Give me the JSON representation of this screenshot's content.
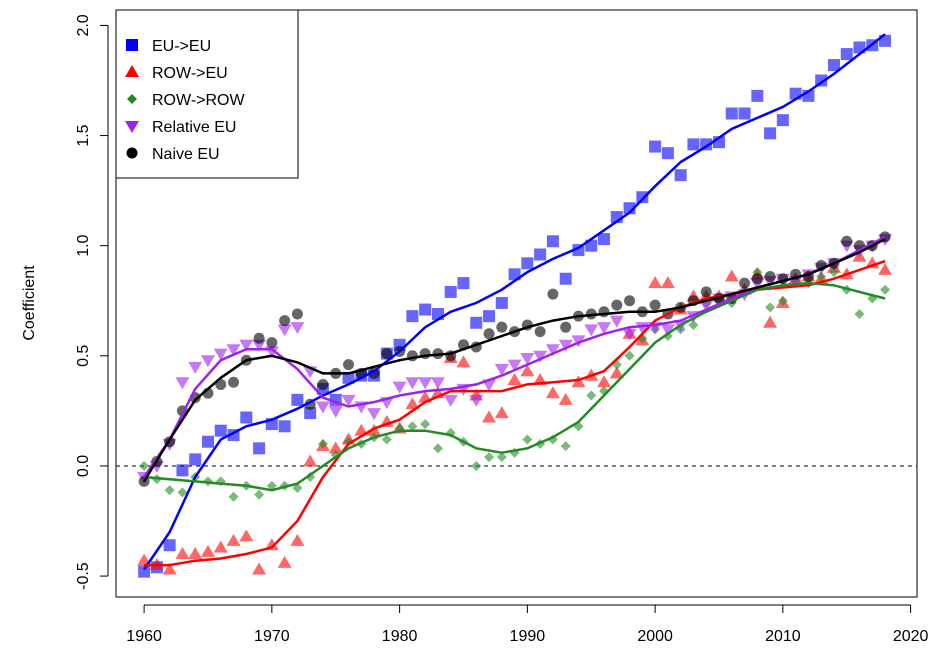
{
  "chart_data": {
    "type": "scatter",
    "y_label": "Coefficient",
    "xlim": [
      1957.8,
      2020.5
    ],
    "ylim": [
      -0.595,
      2.07
    ],
    "xticks": [
      1960,
      1970,
      1980,
      1990,
      2000,
      2010,
      2020
    ],
    "yticks": [
      -0.5,
      0.0,
      0.5,
      1.0,
      1.5,
      2.0
    ],
    "hline": 0,
    "legend": "topleft",
    "x": [
      1960,
      1961,
      1962,
      1963,
      1964,
      1965,
      1966,
      1967,
      1968,
      1969,
      1970,
      1971,
      1972,
      1973,
      1974,
      1975,
      1976,
      1977,
      1978,
      1979,
      1980,
      1981,
      1982,
      1983,
      1984,
      1985,
      1986,
      1987,
      1988,
      1989,
      1990,
      1991,
      1992,
      1993,
      1994,
      1995,
      1996,
      1997,
      1998,
      1999,
      2000,
      2001,
      2002,
      2003,
      2004,
      2005,
      2006,
      2007,
      2008,
      2009,
      2010,
      2011,
      2012,
      2013,
      2014,
      2015,
      2016,
      2017,
      2018
    ],
    "trend_x": [
      1960,
      1962,
      1964,
      1966,
      1968,
      1970,
      1972,
      1974,
      1976,
      1978,
      1980,
      1982,
      1984,
      1986,
      1988,
      1990,
      1992,
      1994,
      1996,
      1998,
      2000,
      2002,
      2004,
      2006,
      2008,
      2010,
      2012,
      2014,
      2016,
      2018
    ],
    "series": [
      {
        "name": "EU->EU",
        "color": "#0000ff",
        "marker": "square",
        "values": [
          -0.48,
          -0.46,
          -0.36,
          -0.02,
          0.03,
          0.11,
          0.16,
          0.14,
          0.22,
          0.08,
          0.19,
          0.18,
          0.3,
          0.24,
          0.35,
          0.3,
          0.4,
          0.41,
          0.41,
          0.51,
          0.55,
          0.68,
          0.71,
          0.69,
          0.79,
          0.83,
          0.65,
          0.68,
          0.74,
          0.87,
          0.92,
          0.96,
          1.02,
          0.85,
          0.98,
          1.0,
          1.03,
          1.13,
          1.17,
          1.22,
          1.45,
          1.42,
          1.32,
          1.46,
          1.46,
          1.47,
          1.6,
          1.6,
          1.68,
          1.51,
          1.57,
          1.69,
          1.68,
          1.75,
          1.82,
          1.87,
          1.9,
          1.91,
          1.93
        ],
        "trend": [
          -0.47,
          -0.3,
          -0.05,
          0.12,
          0.18,
          0.21,
          0.26,
          0.32,
          0.37,
          0.43,
          0.52,
          0.63,
          0.7,
          0.74,
          0.8,
          0.88,
          0.94,
          0.99,
          1.07,
          1.15,
          1.27,
          1.38,
          1.45,
          1.53,
          1.58,
          1.63,
          1.7,
          1.78,
          1.87,
          1.96
        ]
      },
      {
        "name": "ROW->EU",
        "color": "#ff0000",
        "marker": "triangle-up",
        "values": [
          -0.43,
          -0.45,
          -0.47,
          -0.4,
          -0.4,
          -0.39,
          -0.37,
          -0.34,
          -0.32,
          -0.47,
          -0.36,
          -0.44,
          -0.34,
          0.02,
          0.09,
          0.08,
          0.12,
          0.16,
          0.16,
          0.2,
          0.17,
          0.28,
          0.31,
          0.33,
          0.49,
          0.47,
          0.32,
          0.22,
          0.24,
          0.39,
          0.43,
          0.39,
          0.33,
          0.3,
          0.38,
          0.41,
          0.38,
          0.42,
          0.6,
          0.57,
          0.83,
          0.83,
          0.71,
          0.77,
          0.77,
          0.77,
          0.86,
          0.8,
          0.87,
          0.65,
          0.74,
          0.85,
          0.86,
          0.85,
          0.9,
          0.87,
          0.95,
          0.92,
          0.89
        ],
        "trend": [
          -0.45,
          -0.45,
          -0.43,
          -0.42,
          -0.4,
          -0.37,
          -0.25,
          -0.05,
          0.1,
          0.17,
          0.21,
          0.29,
          0.34,
          0.34,
          0.34,
          0.37,
          0.38,
          0.39,
          0.43,
          0.54,
          0.66,
          0.72,
          0.76,
          0.78,
          0.8,
          0.81,
          0.82,
          0.85,
          0.89,
          0.93
        ]
      },
      {
        "name": "ROW->ROW",
        "color": "#228b22",
        "marker": "diamond",
        "values": [
          0.0,
          -0.06,
          -0.11,
          -0.12,
          -0.05,
          -0.07,
          -0.07,
          -0.14,
          -0.09,
          -0.13,
          -0.09,
          -0.09,
          -0.1,
          -0.05,
          0.1,
          0.05,
          0.11,
          0.1,
          0.13,
          0.12,
          0.17,
          0.18,
          0.19,
          0.08,
          0.15,
          0.11,
          0.0,
          0.04,
          0.04,
          0.06,
          0.12,
          0.1,
          0.12,
          0.09,
          0.18,
          0.32,
          0.34,
          0.46,
          0.5,
          0.58,
          0.62,
          0.59,
          0.62,
          0.64,
          0.74,
          0.75,
          0.74,
          0.79,
          0.88,
          0.72,
          0.75,
          0.84,
          0.83,
          0.86,
          0.88,
          0.8,
          0.69,
          0.76,
          0.8
        ],
        "trend": [
          -0.05,
          -0.06,
          -0.07,
          -0.08,
          -0.09,
          -0.11,
          -0.08,
          0.0,
          0.08,
          0.13,
          0.16,
          0.16,
          0.14,
          0.08,
          0.06,
          0.08,
          0.13,
          0.2,
          0.32,
          0.44,
          0.56,
          0.64,
          0.7,
          0.75,
          0.8,
          0.82,
          0.83,
          0.82,
          0.79,
          0.76
        ]
      },
      {
        "name": "Relative EU",
        "color": "#a020f0",
        "marker": "triangle-down",
        "values": [
          -0.05,
          0.0,
          0.1,
          0.38,
          0.45,
          0.48,
          0.51,
          0.53,
          0.55,
          0.55,
          0.52,
          0.62,
          0.63,
          0.43,
          0.27,
          0.25,
          0.3,
          0.27,
          0.24,
          0.29,
          0.36,
          0.38,
          0.38,
          0.38,
          0.3,
          0.35,
          0.3,
          0.37,
          0.44,
          0.46,
          0.49,
          0.5,
          0.53,
          0.55,
          0.57,
          0.62,
          0.63,
          0.66,
          0.6,
          0.63,
          0.63,
          0.62,
          0.64,
          0.68,
          0.73,
          0.76,
          0.77,
          0.78,
          0.83,
          0.84,
          0.85,
          0.84,
          0.87,
          0.9,
          0.92,
          1.0,
          0.98,
          1.0,
          1.03
        ],
        "trend": [
          -0.05,
          0.12,
          0.35,
          0.48,
          0.53,
          0.53,
          0.44,
          0.31,
          0.27,
          0.29,
          0.32,
          0.34,
          0.35,
          0.37,
          0.41,
          0.46,
          0.51,
          0.56,
          0.6,
          0.63,
          0.64,
          0.66,
          0.71,
          0.76,
          0.81,
          0.84,
          0.87,
          0.92,
          0.98,
          1.04
        ]
      },
      {
        "name": "Naive EU",
        "color": "#000000",
        "marker": "circle",
        "values": [
          -0.07,
          0.02,
          0.11,
          0.25,
          0.31,
          0.33,
          0.37,
          0.38,
          0.48,
          0.58,
          0.56,
          0.66,
          0.69,
          0.28,
          0.37,
          0.42,
          0.46,
          0.42,
          0.42,
          0.51,
          0.52,
          0.5,
          0.51,
          0.51,
          0.5,
          0.55,
          0.54,
          0.6,
          0.63,
          0.61,
          0.64,
          0.61,
          0.78,
          0.63,
          0.68,
          0.69,
          0.7,
          0.73,
          0.75,
          0.7,
          0.73,
          0.69,
          0.72,
          0.75,
          0.79,
          0.76,
          0.76,
          0.83,
          0.85,
          0.86,
          0.85,
          0.87,
          0.86,
          0.91,
          0.92,
          1.02,
          1.0,
          1.0,
          1.04
        ],
        "trend": [
          -0.07,
          0.12,
          0.3,
          0.4,
          0.48,
          0.5,
          0.47,
          0.42,
          0.42,
          0.45,
          0.48,
          0.5,
          0.51,
          0.55,
          0.59,
          0.63,
          0.66,
          0.68,
          0.69,
          0.7,
          0.7,
          0.72,
          0.75,
          0.78,
          0.81,
          0.84,
          0.87,
          0.92,
          0.97,
          1.03
        ]
      }
    ]
  }
}
